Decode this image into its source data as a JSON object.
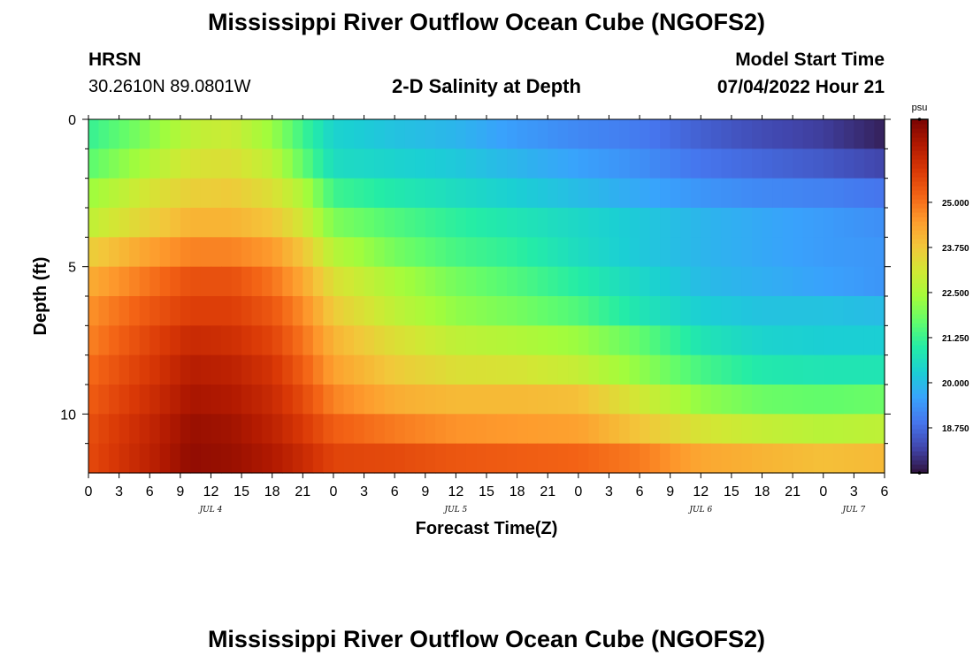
{
  "page": {
    "title": "Mississippi River Outflow Ocean Cube (NGOFS2)",
    "footer_title": "Mississippi River Outflow Ocean Cube (NGOFS2)",
    "station": {
      "name": "HRSN",
      "coords": "30.2610N  89.0801W"
    },
    "plot_title": "2-D Salinity at Depth",
    "model_start": {
      "label": "Model Start Time",
      "value": "07/04/2022 Hour 21"
    }
  },
  "chart_data": {
    "type": "heatmap",
    "title": "2-D Salinity at Depth",
    "xlabel": "Forecast Time(Z)",
    "ylabel": "Depth (ft)",
    "xlim_hours": [
      0,
      78
    ],
    "ylim_ft": [
      0,
      12
    ],
    "y_inverted": true,
    "x_ticks": [
      {
        "hour": 0,
        "label": "0"
      },
      {
        "hour": 3,
        "label": "3"
      },
      {
        "hour": 6,
        "label": "6"
      },
      {
        "hour": 9,
        "label": "9"
      },
      {
        "hour": 12,
        "label": "12"
      },
      {
        "hour": 15,
        "label": "15"
      },
      {
        "hour": 18,
        "label": "18"
      },
      {
        "hour": 21,
        "label": "21"
      },
      {
        "hour": 24,
        "label": "0"
      },
      {
        "hour": 27,
        "label": "3"
      },
      {
        "hour": 30,
        "label": "6"
      },
      {
        "hour": 33,
        "label": "9"
      },
      {
        "hour": 36,
        "label": "12"
      },
      {
        "hour": 39,
        "label": "15"
      },
      {
        "hour": 42,
        "label": "18"
      },
      {
        "hour": 45,
        "label": "21"
      },
      {
        "hour": 48,
        "label": "0"
      },
      {
        "hour": 51,
        "label": "3"
      },
      {
        "hour": 54,
        "label": "6"
      },
      {
        "hour": 57,
        "label": "9"
      },
      {
        "hour": 60,
        "label": "12"
      },
      {
        "hour": 63,
        "label": "15"
      },
      {
        "hour": 66,
        "label": "18"
      },
      {
        "hour": 69,
        "label": "21"
      },
      {
        "hour": 72,
        "label": "0"
      },
      {
        "hour": 75,
        "label": "3"
      },
      {
        "hour": 78,
        "label": "6"
      }
    ],
    "date_labels": [
      {
        "hour": 12,
        "label": "JUL 4"
      },
      {
        "hour": 36,
        "label": "JUL 5"
      },
      {
        "hour": 60,
        "label": "JUL 6"
      },
      {
        "hour": 75,
        "label": "JUL 7"
      }
    ],
    "y_ticks": [
      {
        "depth": 0,
        "label": "0"
      },
      {
        "depth": 5,
        "label": "5"
      },
      {
        "depth": 10,
        "label": "10"
      }
    ],
    "y_minor_ticks": [
      1,
      2,
      3,
      4,
      6,
      7,
      8,
      9,
      11
    ],
    "depth_layers": [
      0.5,
      1.5,
      2.5,
      3.5,
      4.5,
      5.5,
      6.5,
      7.5,
      8.5,
      9.5,
      10.5,
      11.5
    ],
    "time_knots_hours": [
      0,
      6,
      10,
      14,
      18,
      21,
      24,
      30,
      36,
      42,
      48,
      54,
      60,
      66,
      72,
      78
    ],
    "salinity_psu": [
      [
        21.2,
        22.1,
        22.8,
        23.0,
        22.3,
        21.3,
        20.4,
        20.1,
        19.9,
        19.5,
        19.2,
        19.0,
        18.6,
        18.3,
        18.1,
        17.7
      ],
      [
        21.6,
        22.6,
        23.2,
        23.3,
        22.8,
        21.7,
        20.6,
        20.4,
        20.2,
        19.9,
        19.6,
        19.3,
        18.9,
        18.7,
        18.5,
        18.2
      ],
      [
        22.3,
        23.2,
        23.6,
        23.7,
        23.3,
        22.6,
        21.3,
        20.9,
        20.6,
        20.3,
        20.0,
        19.7,
        19.4,
        19.2,
        19.1,
        18.9
      ],
      [
        22.8,
        23.6,
        24.1,
        24.1,
        23.8,
        23.1,
        22.0,
        21.5,
        21.1,
        20.8,
        20.5,
        20.2,
        19.9,
        19.7,
        19.5,
        19.3
      ],
      [
        23.6,
        24.4,
        24.8,
        24.8,
        24.5,
        23.8,
        22.7,
        21.9,
        21.4,
        21.1,
        20.6,
        20.2,
        19.9,
        19.7,
        19.5,
        19.4
      ],
      [
        24.2,
        25.0,
        25.5,
        25.5,
        25.0,
        24.3,
        23.3,
        22.5,
        21.9,
        21.5,
        21.0,
        20.5,
        20.0,
        19.8,
        19.6,
        19.4
      ],
      [
        24.6,
        25.4,
        25.8,
        25.8,
        25.4,
        24.7,
        23.7,
        22.8,
        22.2,
        21.9,
        21.5,
        20.8,
        20.3,
        20.1,
        20.1,
        20.0
      ],
      [
        24.8,
        25.7,
        26.2,
        26.1,
        25.7,
        25.0,
        24.1,
        23.3,
        22.8,
        22.6,
        22.3,
        21.7,
        20.8,
        20.4,
        20.3,
        20.3
      ],
      [
        25.1,
        25.9,
        26.5,
        26.4,
        26.0,
        25.3,
        24.4,
        23.7,
        23.3,
        23.2,
        22.9,
        22.2,
        21.4,
        20.9,
        20.8,
        20.8
      ],
      [
        25.3,
        26.1,
        26.7,
        26.6,
        26.2,
        25.6,
        24.8,
        24.2,
        24.0,
        24.0,
        23.9,
        23.1,
        22.2,
        21.8,
        21.7,
        21.8
      ],
      [
        25.5,
        26.3,
        26.9,
        26.8,
        26.4,
        25.9,
        25.3,
        24.9,
        24.6,
        24.5,
        24.4,
        23.8,
        23.2,
        22.9,
        22.7,
        22.8
      ],
      [
        25.6,
        26.4,
        27.0,
        26.9,
        26.6,
        26.2,
        25.7,
        25.6,
        25.4,
        25.3,
        25.2,
        24.9,
        24.3,
        24.1,
        23.9,
        24.0
      ]
    ],
    "colorbar": {
      "unit": "psu",
      "range": [
        17.5,
        27.3
      ],
      "ticks": [
        {
          "value": 25.0,
          "label": "25.000"
        },
        {
          "value": 23.75,
          "label": "23.750"
        },
        {
          "value": 22.5,
          "label": "22.500"
        },
        {
          "value": 21.25,
          "label": "21.250"
        },
        {
          "value": 20.0,
          "label": "20.000"
        },
        {
          "value": 18.75,
          "label": "18.750"
        }
      ],
      "colors": [
        "#30123b",
        "#4145ab",
        "#4675ed",
        "#39a2fc",
        "#1bcfd4",
        "#24eca6",
        "#61fc6c",
        "#a4fc3b",
        "#d1e834",
        "#f3c63a",
        "#fe9b2d",
        "#f36315",
        "#d93806",
        "#b11901",
        "#7a0402"
      ]
    }
  }
}
